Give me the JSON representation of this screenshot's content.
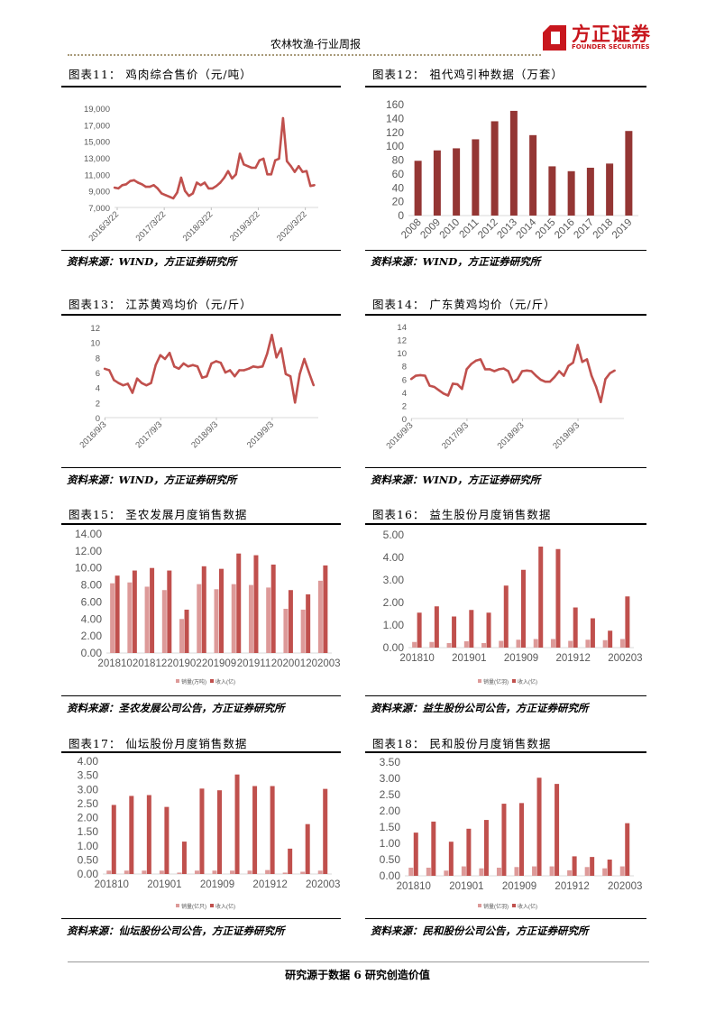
{
  "header": {
    "title": "农林牧渔-行业周报",
    "logo_cn": "方正证券",
    "logo_en": "FOUNDER SECURITIES",
    "brand_color": "#c8161d"
  },
  "footer": {
    "text": "研究源于数据 6 研究创造价值"
  },
  "colors": {
    "line": "#c0504d",
    "bar_dark": "#943634",
    "bar_sales": "#dd9a99",
    "bar_revenue": "#c0504d"
  },
  "figures": [
    {
      "title": "图表11：  鸡肉综合售价（元/吨）",
      "source": "资料来源：WIND，方正证券研究所"
    },
    {
      "title": "图表12：  祖代鸡引种数据（万套）",
      "source": "资料来源：WIND，方正证券研究所"
    },
    {
      "title": "图表13：  江苏黄鸡均价（元/斤）",
      "source": "资料来源：WIND，方正证券研究所"
    },
    {
      "title": "图表14：  广东黄鸡均价（元/斤）",
      "source": "资料来源：WIND，方正证券研究所"
    },
    {
      "title": "图表15：  圣农发展月度销售数据",
      "source": "资料来源：圣农发展公司公告，方正证券研究所"
    },
    {
      "title": "图表16：  益生股份月度销售数据",
      "source": "资料来源：益生股份公司公告，方正证券研究所"
    },
    {
      "title": "图表17：  仙坛股份月度销售数据",
      "source": "资料来源：仙坛股份公司公告，方正证券研究所"
    },
    {
      "title": "图表18：  民和股份月度销售数据",
      "source": "资料来源：民和股份公司公告，方正证券研究所"
    }
  ],
  "chart_data": [
    {
      "type": "line",
      "ylim": [
        7000,
        19000
      ],
      "yticks": [
        "7,000",
        "9,000",
        "11,000",
        "13,000",
        "15,000",
        "17,000",
        "19,000"
      ],
      "ytick_values": [
        7000,
        9000,
        11000,
        13000,
        15000,
        17000,
        19000
      ],
      "xticks": [
        "2016/3/22",
        "2017/3/22",
        "2018/3/22",
        "2019/3/22",
        "2020/3/22"
      ],
      "xlim": [
        "2016-03",
        "2020-07"
      ],
      "x": [
        "2016-03",
        "2016-04",
        "2016-05",
        "2016-06",
        "2016-07",
        "2016-08",
        "2016-09",
        "2016-10",
        "2016-11",
        "2016-12",
        "2017-01",
        "2017-02",
        "2017-03",
        "2017-04",
        "2017-05",
        "2017-06",
        "2017-07",
        "2017-08",
        "2017-09",
        "2017-10",
        "2017-11",
        "2017-12",
        "2018-01",
        "2018-02",
        "2018-03",
        "2018-04",
        "2018-05",
        "2018-06",
        "2018-07",
        "2018-08",
        "2018-09",
        "2018-10",
        "2018-11",
        "2018-12",
        "2019-01",
        "2019-02",
        "2019-03",
        "2019-04",
        "2019-05",
        "2019-06",
        "2019-07",
        "2019-08",
        "2019-09",
        "2019-10",
        "2019-11",
        "2019-12",
        "2020-01",
        "2020-02",
        "2020-03",
        "2020-04",
        "2020-05",
        "2020-06"
      ],
      "values": [
        9400,
        9300,
        9700,
        9800,
        10200,
        10300,
        10000,
        9800,
        9500,
        9500,
        9700,
        9300,
        8700,
        8500,
        8300,
        8100,
        8800,
        10600,
        9000,
        8400,
        8700,
        10000,
        9700,
        10000,
        9300,
        9300,
        9600,
        10000,
        10600,
        11400,
        10500,
        11000,
        13500,
        12200,
        12000,
        11800,
        11800,
        12700,
        12900,
        11000,
        11000,
        12700,
        12900,
        17800,
        12600,
        12000,
        11300,
        12000,
        11300,
        11400,
        9600,
        9700
      ]
    },
    {
      "type": "bar",
      "ylim": [
        0,
        160
      ],
      "yticks": [
        "0",
        "20",
        "40",
        "60",
        "80",
        "100",
        "120",
        "140",
        "160"
      ],
      "ytick_values": [
        0,
        20,
        40,
        60,
        80,
        100,
        120,
        140,
        160
      ],
      "categories": [
        "2008",
        "2009",
        "2010",
        "2011",
        "2012",
        "2013",
        "2014",
        "2015",
        "2016",
        "2017",
        "2018",
        "2019"
      ],
      "values": [
        79,
        94,
        97,
        110,
        136,
        151,
        116,
        71,
        64,
        69,
        75,
        122
      ]
    },
    {
      "type": "line",
      "ylim": [
        0,
        12
      ],
      "yticks": [
        "0",
        "2",
        "4",
        "6",
        "8",
        "10",
        "12"
      ],
      "ytick_values": [
        0,
        2,
        4,
        6,
        8,
        10,
        12
      ],
      "xticks": [
        "2016/9/3",
        "2017/9/3",
        "2018/9/3",
        "2019/9/3"
      ],
      "xlim": [
        "2016-09",
        "2020-07"
      ],
      "x": [
        "2016-09",
        "2016-10",
        "2016-11",
        "2016-12",
        "2017-01",
        "2017-02",
        "2017-03",
        "2017-04",
        "2017-05",
        "2017-06",
        "2017-07",
        "2017-08",
        "2017-09",
        "2017-10",
        "2017-11",
        "2017-12",
        "2018-01",
        "2018-02",
        "2018-03",
        "2018-04",
        "2018-05",
        "2018-06",
        "2018-07",
        "2018-08",
        "2018-09",
        "2018-10",
        "2018-11",
        "2018-12",
        "2019-01",
        "2019-02",
        "2019-03",
        "2019-04",
        "2019-05",
        "2019-06",
        "2019-07",
        "2019-08",
        "2019-09",
        "2019-10",
        "2019-11",
        "2019-12",
        "2020-01",
        "2020-02",
        "2020-03",
        "2020-04",
        "2020-05",
        "2020-06"
      ],
      "values": [
        6.5,
        6.3,
        5.0,
        4.6,
        4.3,
        4.5,
        3.3,
        5.2,
        4.6,
        4.3,
        4.6,
        7.0,
        8.3,
        7.8,
        8.6,
        6.8,
        6.5,
        7.2,
        6.8,
        7.0,
        6.8,
        5.3,
        5.5,
        7.2,
        7.5,
        7.3,
        6.0,
        6.3,
        5.5,
        6.3,
        6.3,
        6.5,
        6.8,
        6.7,
        6.8,
        8.5,
        11.0,
        8.0,
        9.2,
        5.8,
        5.5,
        2.0,
        5.8,
        7.8,
        6.0,
        4.3
      ]
    },
    {
      "type": "line",
      "ylim": [
        0,
        14
      ],
      "yticks": [
        "0",
        "2",
        "4",
        "6",
        "8",
        "10",
        "12",
        "14"
      ],
      "ytick_values": [
        0,
        2,
        4,
        6,
        8,
        10,
        12,
        14
      ],
      "xticks": [
        "2016/9/3",
        "2017/9/3",
        "2018/9/3",
        "2019/9/3"
      ],
      "xlim": [
        "2016-09",
        "2020-07"
      ],
      "x": [
        "2016-09",
        "2016-10",
        "2016-11",
        "2016-12",
        "2017-01",
        "2017-02",
        "2017-03",
        "2017-04",
        "2017-05",
        "2017-06",
        "2017-07",
        "2017-08",
        "2017-09",
        "2017-10",
        "2017-11",
        "2017-12",
        "2018-01",
        "2018-02",
        "2018-03",
        "2018-04",
        "2018-05",
        "2018-06",
        "2018-07",
        "2018-08",
        "2018-09",
        "2018-10",
        "2018-11",
        "2018-12",
        "2019-01",
        "2019-02",
        "2019-03",
        "2019-04",
        "2019-05",
        "2019-06",
        "2019-07",
        "2019-08",
        "2019-09",
        "2019-10",
        "2019-11",
        "2019-12",
        "2020-01",
        "2020-02",
        "2020-03",
        "2020-04",
        "2020-05"
      ],
      "values": [
        6.0,
        6.5,
        6.6,
        6.5,
        5.0,
        4.8,
        4.3,
        3.8,
        3.5,
        5.3,
        5.2,
        4.5,
        7.5,
        8.3,
        8.8,
        9.0,
        7.5,
        7.5,
        7.2,
        7.5,
        7.6,
        7.2,
        5.5,
        6.0,
        7.2,
        7.3,
        7.2,
        6.5,
        5.9,
        5.6,
        5.6,
        6.3,
        7.2,
        6.5,
        8.0,
        8.5,
        11.2,
        8.6,
        9.0,
        6.5,
        4.8,
        2.5,
        6.0,
        6.9,
        7.3
      ]
    },
    {
      "type": "bar",
      "ylim": [
        0,
        14
      ],
      "yticks": [
        "0.00",
        "2.00",
        "4.00",
        "6.00",
        "8.00",
        "10.00",
        "12.00",
        "14.00"
      ],
      "ytick_values": [
        0,
        2,
        4,
        6,
        8,
        10,
        12,
        14
      ],
      "categories": [
        "201810",
        "",
        "201812",
        "",
        "201902",
        "",
        "201909",
        "",
        "201911",
        "",
        "202001",
        "",
        "202003"
      ],
      "legend": "bottom",
      "series": [
        {
          "name": "销量(万吨)",
          "values": [
            8.2,
            8.3,
            7.8,
            7.4,
            4.0,
            8.1,
            7.5,
            8.1,
            8.0,
            7.7,
            5.2,
            5.1,
            8.5
          ]
        },
        {
          "name": "收入(亿)",
          "values": [
            9.1,
            9.7,
            10.0,
            9.7,
            5.1,
            10.2,
            9.9,
            11.7,
            11.5,
            10.4,
            7.4,
            6.9,
            10.3
          ]
        }
      ]
    },
    {
      "type": "bar",
      "ylim": [
        0,
        5
      ],
      "yticks": [
        "0.00",
        "1.00",
        "2.00",
        "3.00",
        "4.00",
        "5.00"
      ],
      "ytick_values": [
        0,
        1,
        2,
        3,
        4,
        5
      ],
      "categories": [
        "201810",
        "",
        "",
        "201901",
        "",
        "",
        "201909",
        "",
        "",
        "201912",
        "",
        "",
        "200203"
      ],
      "legend": "bottom",
      "series": [
        {
          "name": "销量(亿羽)",
          "values": [
            0.25,
            0.25,
            0.2,
            0.28,
            0.2,
            0.3,
            0.35,
            0.38,
            0.38,
            0.3,
            0.35,
            0.33,
            0.38
          ]
        },
        {
          "name": "收入(亿)",
          "values": [
            1.55,
            1.83,
            1.38,
            1.67,
            1.55,
            2.75,
            3.45,
            4.48,
            4.37,
            1.78,
            1.3,
            0.75,
            2.27
          ]
        }
      ]
    },
    {
      "type": "bar",
      "ylim": [
        0,
        4
      ],
      "yticks": [
        "0.00",
        "0.50",
        "1.00",
        "1.50",
        "2.00",
        "2.50",
        "3.00",
        "3.50",
        "4.00"
      ],
      "ytick_values": [
        0,
        0.5,
        1,
        1.5,
        2,
        2.5,
        3,
        3.5,
        4
      ],
      "categories": [
        "201810",
        "",
        "",
        "201901",
        "",
        "",
        "201909",
        "",
        "",
        "201912",
        "",
        "",
        "202003"
      ],
      "legend": "bottom",
      "series": [
        {
          "name": "销量(亿只)",
          "values": [
            0.12,
            0.12,
            0.12,
            0.12,
            0.05,
            0.12,
            0.12,
            0.12,
            0.12,
            0.14,
            0.05,
            0.08,
            0.12
          ]
        },
        {
          "name": "收入(亿)",
          "values": [
            2.45,
            2.77,
            2.8,
            2.38,
            1.15,
            3.03,
            2.97,
            3.53,
            3.12,
            3.12,
            0.9,
            1.77,
            3.02
          ]
        }
      ]
    },
    {
      "type": "bar",
      "ylim": [
        0,
        3.5
      ],
      "yticks": [
        "0.00",
        "0.50",
        "1.00",
        "1.50",
        "2.00",
        "2.50",
        "3.00",
        "3.50"
      ],
      "ytick_values": [
        0,
        0.5,
        1,
        1.5,
        2,
        2.5,
        3,
        3.5
      ],
      "categories": [
        "201810",
        "",
        "",
        "201901",
        "",
        "",
        "201909",
        "",
        "",
        "201912",
        "",
        "",
        "202003"
      ],
      "legend": "bottom",
      "series": [
        {
          "name": "销量(亿羽)",
          "values": [
            0.25,
            0.25,
            0.16,
            0.29,
            0.23,
            0.25,
            0.27,
            0.29,
            0.29,
            0.17,
            0.27,
            0.23,
            0.29
          ]
        },
        {
          "name": "收入(亿)",
          "values": [
            1.33,
            1.67,
            1.05,
            1.45,
            1.72,
            2.22,
            2.24,
            3.02,
            2.83,
            0.6,
            0.58,
            0.5,
            1.62
          ]
        }
      ]
    }
  ]
}
